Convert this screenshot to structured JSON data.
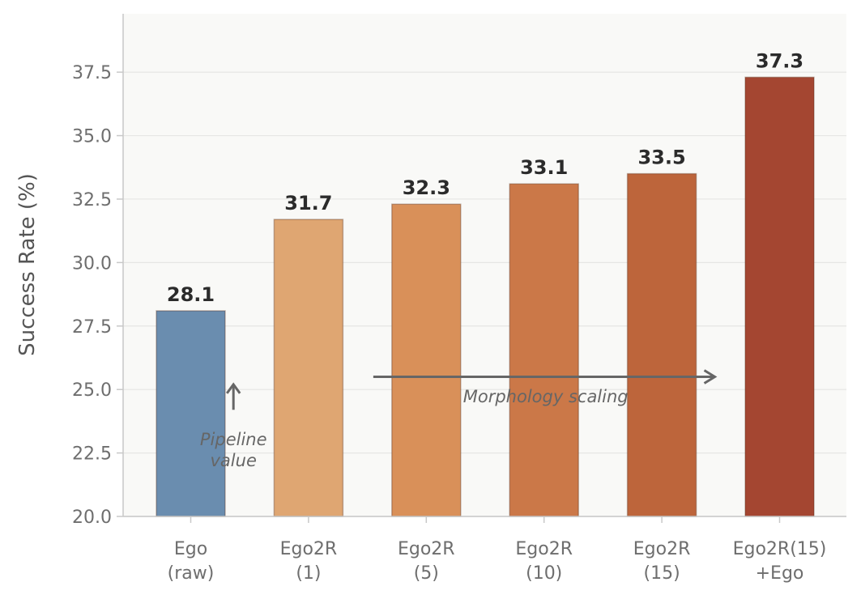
{
  "chart_data": {
    "type": "bar",
    "categories": [
      [
        "Ego",
        "(raw)"
      ],
      [
        "Ego2R",
        "(1)"
      ],
      [
        "Ego2R",
        "(5)"
      ],
      [
        "Ego2R",
        "(10)"
      ],
      [
        "Ego2R",
        "(15)"
      ],
      [
        "Ego2R(15)",
        "+Ego"
      ]
    ],
    "values": [
      28.1,
      31.7,
      32.3,
      33.1,
      33.5,
      37.3
    ],
    "value_labels": [
      "28.1",
      "31.7",
      "32.3",
      "33.1",
      "33.5",
      "37.3"
    ],
    "bar_colors": [
      "#6a8daf",
      "#dfa672",
      "#d99059",
      "#cb7848",
      "#bd653b",
      "#a44631"
    ],
    "ylabel": "Success Rate (%)",
    "xlabel": "",
    "title": "",
    "ylim": [
      20.0,
      39.8
    ],
    "yticks": [
      20.0,
      22.5,
      25.0,
      27.5,
      30.0,
      32.5,
      35.0,
      37.5
    ],
    "ytick_labels": [
      "20.0",
      "22.5",
      "25.0",
      "27.5",
      "30.0",
      "32.5",
      "35.0",
      "37.5"
    ],
    "grid": "horizontal",
    "background": "#f9f9f7",
    "annotations": [
      {
        "lines": [
          "Pipeline",
          "value"
        ],
        "arrow": "up",
        "at_category": 0.5,
        "arrow_y": [
          24.2,
          25.2
        ],
        "text_y": 22.8
      },
      {
        "lines": [
          "Morphology scaling"
        ],
        "arrow": "right",
        "from_category": 1.55,
        "to_category": 4.45,
        "arrow_y": 25.5,
        "text_y": 24.5
      }
    ]
  }
}
